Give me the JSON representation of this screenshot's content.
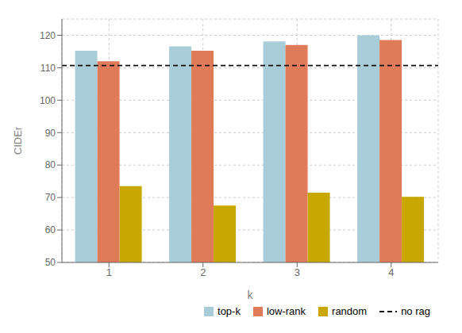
{
  "chart_data": {
    "type": "bar",
    "categories": [
      "1",
      "2",
      "3",
      "4"
    ],
    "xlabel": "k",
    "ylabel": "CIDEr",
    "series": [
      {
        "name": "top-k",
        "color": "#a8cdd8",
        "values": [
          115.2,
          116.6,
          118.1,
          120.0
        ]
      },
      {
        "name": "low-rank",
        "color": "#e07b5a",
        "values": [
          112.0,
          115.2,
          117.0,
          118.5
        ]
      },
      {
        "name": "random",
        "color": "#c8a800",
        "values": [
          73.5,
          67.5,
          71.5,
          70.2
        ]
      }
    ],
    "hlines": [
      {
        "name": "no rag",
        "value": 110.7,
        "color": "#111111",
        "line_style": "dashed"
      }
    ],
    "ylim": [
      50,
      125
    ],
    "yticks": [
      50,
      60,
      70,
      80,
      90,
      100,
      110,
      120
    ],
    "grid": true,
    "legend": "lower right"
  }
}
